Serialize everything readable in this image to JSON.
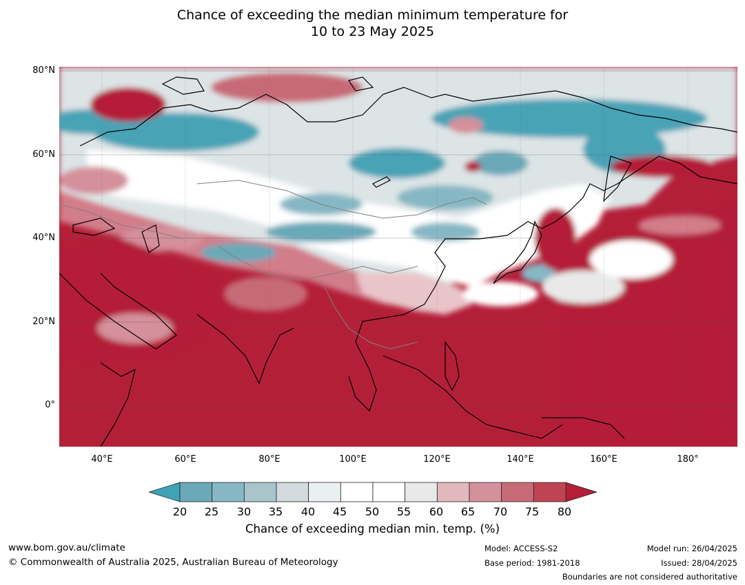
{
  "title": {
    "line1": "Chance of exceeding the median minimum temperature for",
    "line2": "10 to 23 May 2025"
  },
  "map": {
    "lat_labels": [
      "80°N",
      "60°N",
      "40°N",
      "20°N",
      "0°"
    ],
    "lon_labels": [
      "40°E",
      "60°E",
      "80°E",
      "100°E",
      "120°E",
      "140°E",
      "160°E",
      "180°"
    ],
    "colors": {
      "high": "#b41f38",
      "above": "#d27d8a",
      "neutral": "#ffffff",
      "near": "#dfe5e7",
      "below": "#4aa3b6",
      "coast": "#000000",
      "border": "#808080"
    }
  },
  "colorbar": {
    "ticks": [
      "20",
      "25",
      "30",
      "35",
      "40",
      "45",
      "50",
      "55",
      "60",
      "65",
      "70",
      "75",
      "80"
    ],
    "colors": [
      "#3fa3b6",
      "#6aa9b8",
      "#86b7c4",
      "#a9c4cb",
      "#d3dadd",
      "#eaeff1",
      "#ffffff",
      "#ffffff",
      "#e9e9e9",
      "#e0b8be",
      "#d4909b",
      "#c76a77",
      "#bf4453",
      "#b41f38"
    ],
    "label": "Chance of exceeding median min. temp. (%)"
  },
  "footer": {
    "website": "www.bom.gov.au/climate",
    "copyright": "© Commonwealth of Australia 2025, Australian Bureau of Meteorology",
    "model": "Model: ACCESS-S2",
    "base_period": "Base period: 1981-2018",
    "model_run": "Model run: 26/04/2025",
    "issued": "Issued: 28/04/2025",
    "disclaimer": "Boundaries are not considered authoritative"
  }
}
